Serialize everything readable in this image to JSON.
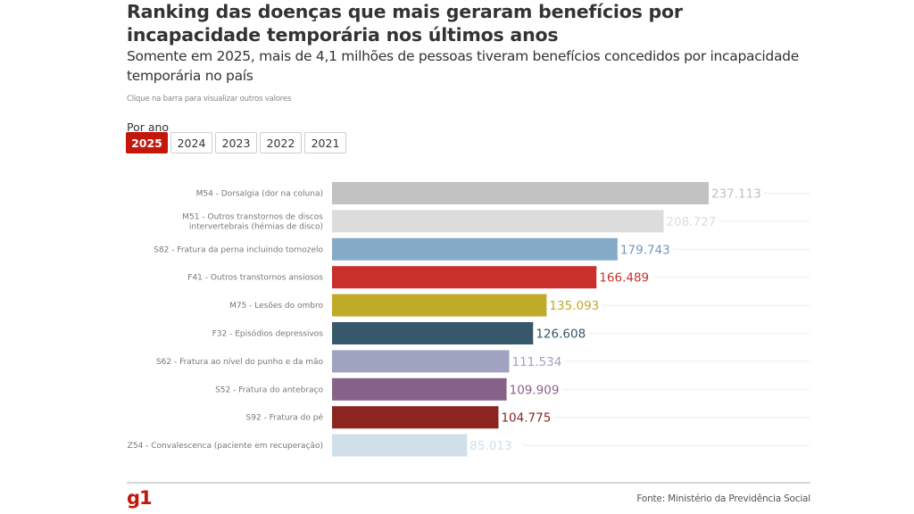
{
  "header": {
    "title": "Ranking das doenças que mais geraram benefícios por incapacidade temporária nos últimos anos",
    "subtitle": "Somente em 2025, mais de 4,1 milhões de pessoas tiveram benefícios concedidos por incapacidade temporária no país",
    "hint": "Clique na barra para visualizar outros valores"
  },
  "filter": {
    "label": "Por ano",
    "years": [
      {
        "label": "2025",
        "active": true
      },
      {
        "label": "2024",
        "active": false
      },
      {
        "label": "2023",
        "active": false
      },
      {
        "label": "2022",
        "active": false
      },
      {
        "label": "2021",
        "active": false
      }
    ]
  },
  "chart_data": {
    "type": "bar",
    "orientation": "horizontal",
    "title": "Ranking das doenças que mais geraram benefícios por incapacidade temporária nos últimos anos",
    "xlabel": "",
    "ylabel": "",
    "xlim": [
      0,
      237113
    ],
    "grid": true,
    "categories": [
      "M54 - Dorsalgia (dor na coluna)",
      "M51 - Outros transtornos de discos intervertebrais (hérnias de disco)",
      "S82 - Fratura da perna incluindo tornozelo",
      "F41 - Outros transtornos ansiosos",
      "M75 - Lesões do ombro",
      "F32 - Episódios depressivos",
      "S62 - Fratura ao nível do punho e da mão",
      "S52 - Fratura do antebraço",
      "S92 - Fratura do pé",
      "Z54 - Convalescenca (paciente em recuperação)"
    ],
    "category_lines": [
      [
        "M54 - Dorsalgia (dor na coluna)"
      ],
      [
        "M51 - Outros transtornos de discos",
        "intervertebrais (hérnias de disco)"
      ],
      [
        "S82 - Fratura da perna incluindo tornozelo"
      ],
      [
        "F41 - Outros transtornos ansiosos"
      ],
      [
        "M75 - Lesões do ombro"
      ],
      [
        "F32 - Episódios depressivos"
      ],
      [
        "S62 - Fratura ao nível do punho e da mão"
      ],
      [
        "S52 - Fratura do antebraço"
      ],
      [
        "S92 - Fratura do pé"
      ],
      [
        "Z54 - Convalescenca (paciente em recuperação)"
      ]
    ],
    "values": [
      237113,
      208727,
      179743,
      166489,
      135093,
      126608,
      111534,
      109909,
      104775,
      85013
    ],
    "value_labels": [
      "237.113",
      "208.727",
      "179.743",
      "166.489",
      "135.093",
      "126.608",
      "111.534",
      "109.909",
      "104.775",
      "85.013"
    ],
    "colors": [
      "#c2c2c2",
      "#dcdcdc",
      "#86abc9",
      "#c9302c",
      "#bfaa2a",
      "#37576a",
      "#a0a3c0",
      "#866288",
      "#8b2520",
      "#d0e0ea"
    ],
    "label_colors": [
      "#c2c2c2",
      "#dcdcdc",
      "#6f98ba",
      "#c9302c",
      "#bfaa2a",
      "#37576a",
      "#a0a3c0",
      "#866288",
      "#8b2520",
      "#d0e0ea"
    ]
  },
  "footer": {
    "logo": "g1",
    "source": "Fonte: Ministério da Previdência Social"
  }
}
